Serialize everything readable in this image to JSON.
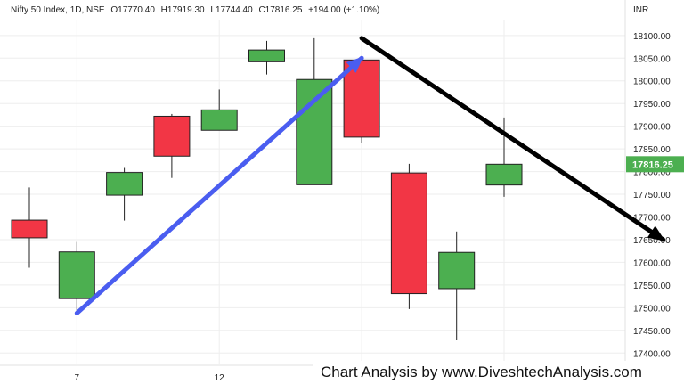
{
  "header": {
    "symbol": "Nifty 50 Index, 1D, NSE",
    "open": "O17770.40",
    "high": "H17919.30",
    "low": "L17744.40",
    "close": "C17816.25",
    "change": "+194.00 (+1.10%)"
  },
  "currency": "INR",
  "watermark": "Chart Analysis by www.DiveshtechAnalysis.com",
  "last_price_label": "17816.25",
  "colors": {
    "up": "#4caf50",
    "down": "#f23645",
    "up_arrow": "#4a5df0",
    "down_arrow": "#000000",
    "grid": "#eeeeee",
    "price_tag": "#4caf50"
  },
  "chart_data": {
    "type": "candlestick",
    "x_tick_labels": [
      {
        "label": "7",
        "index": 1
      },
      {
        "label": "12",
        "index": 4
      }
    ],
    "y_ticks": [
      17400,
      17450,
      17500,
      17550,
      17600,
      17650,
      17700,
      17750,
      17800,
      17850,
      17900,
      17950,
      18000,
      18050,
      18100
    ],
    "y_tick_labels": [
      "17400.00",
      "17450.00",
      "17500.00",
      "17550.00",
      "17600.00",
      "17650.00",
      "17700.00",
      "17750.00",
      "17800.00",
      "17850.00",
      "17900.00",
      "17950.00",
      "18000.00",
      "18050.00",
      "18100.00"
    ],
    "ylim": [
      17375,
      18135
    ],
    "grid": true,
    "candles": [
      {
        "o": 17693,
        "h": 17765,
        "l": 17588,
        "c": 17654
      },
      {
        "o": 17520,
        "h": 17645,
        "l": 17488,
        "c": 17623
      },
      {
        "o": 17748,
        "h": 17808,
        "l": 17692,
        "c": 17798
      },
      {
        "o": 17922,
        "h": 17927,
        "l": 17786,
        "c": 17834
      },
      {
        "o": 17891,
        "h": 17981,
        "l": 17891,
        "c": 17936
      },
      {
        "o": 18042,
        "h": 18088,
        "l": 18014,
        "c": 18068
      },
      {
        "o": 17771,
        "h": 18094,
        "l": 17771,
        "c": 18003
      },
      {
        "o": 18046,
        "h": 18046,
        "l": 17862,
        "c": 17876
      },
      {
        "o": 17797,
        "h": 17817,
        "l": 17497,
        "c": 17531
      },
      {
        "o": 17542,
        "h": 17668,
        "l": 17428,
        "c": 17622
      },
      {
        "o": 17770.4,
        "h": 17919.3,
        "l": 17744.4,
        "c": 17816.25
      }
    ],
    "annotations": [
      {
        "type": "arrow",
        "color": "up_arrow",
        "from": {
          "index": 1,
          "value": 17488
        },
        "to": {
          "index": 7,
          "value": 18050
        }
      },
      {
        "type": "arrow",
        "color": "down_arrow",
        "from": {
          "index": 7,
          "value": 18094
        },
        "to": {
          "index": 13.35,
          "value": 17650
        }
      }
    ]
  }
}
